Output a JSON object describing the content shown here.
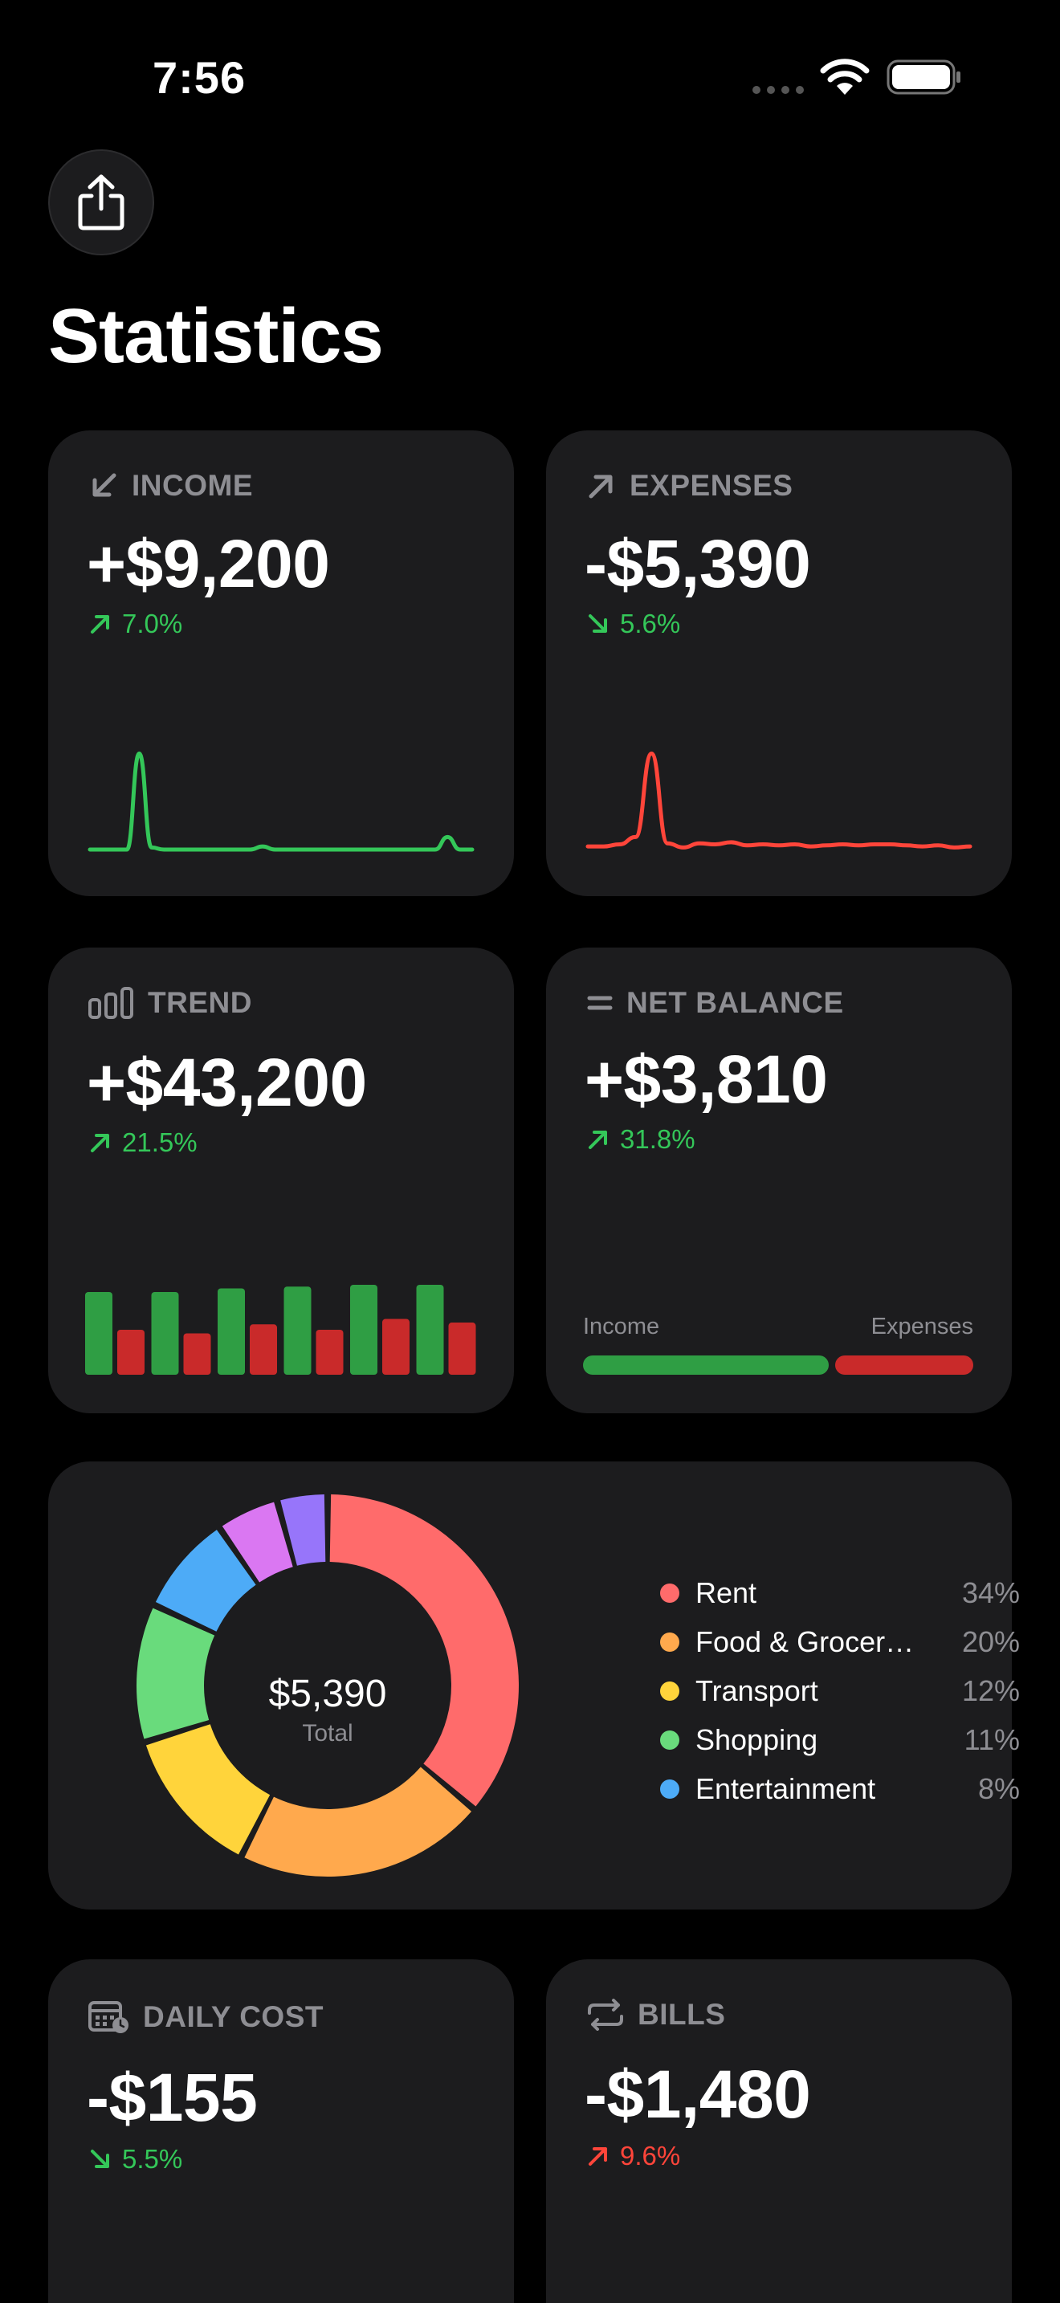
{
  "status_bar": {
    "time": "7:56"
  },
  "page": {
    "title": "Statistics"
  },
  "cards": {
    "income": {
      "label": "INCOME",
      "value": "+$9,200",
      "delta": "7.0%",
      "delta_direction": "up",
      "icon": "arrow-down-left-icon",
      "color": "#34c759"
    },
    "expenses": {
      "label": "EXPENSES",
      "value": "-$5,390",
      "delta": "5.6%",
      "delta_direction": "down",
      "icon": "arrow-up-right-icon",
      "color": "#ff453a"
    },
    "trend": {
      "label": "TREND",
      "value": "+$43,200",
      "delta": "21.5%",
      "delta_direction": "up",
      "icon": "chart-bars-icon"
    },
    "net_balance": {
      "label": "NET BALANCE",
      "value": "+$3,810",
      "delta": "31.8%",
      "delta_direction": "up",
      "icon": "equals-icon",
      "bar_income_label": "Income",
      "bar_expenses_label": "Expenses",
      "income_share": 0.63
    },
    "daily_cost": {
      "label": "DAILY COST",
      "value": "-$155",
      "delta": "5.5%",
      "delta_direction": "down",
      "icon": "calendar-clock-icon"
    },
    "bills": {
      "label": "BILLS",
      "value": "-$1,480",
      "delta": "9.6%",
      "delta_direction": "up",
      "icon": "repeat-icon"
    }
  },
  "breakdown": {
    "total_value": "$5,390",
    "total_label": "Total",
    "legend": [
      {
        "label": "Rent",
        "pct": "34%",
        "color": "#ff6b6b"
      },
      {
        "label": "Food & Grocer…",
        "pct": "20%",
        "color": "#ffa94d"
      },
      {
        "label": "Transport",
        "pct": "12%",
        "color": "#ffd43b"
      },
      {
        "label": "Shopping",
        "pct": "11%",
        "color": "#69db7c"
      },
      {
        "label": "Entertainment",
        "pct": "8%",
        "color": "#4dabf7"
      }
    ]
  },
  "chart_data": [
    {
      "type": "pie",
      "slices": [
        {
          "label": "Rent",
          "value": 34,
          "color": "#ff6b6b"
        },
        {
          "label": "Food & Grocer…",
          "value": 20,
          "color": "#ffa94d"
        },
        {
          "label": "Transport",
          "value": 12,
          "color": "#ffd43b"
        },
        {
          "label": "Shopping",
          "value": 11,
          "color": "#69db7c"
        },
        {
          "label": "Entertainment",
          "value": 8,
          "color": "#4dabf7"
        },
        {
          "label": "",
          "value": 5,
          "color": "#da77f2"
        },
        {
          "label": "",
          "value": 4,
          "color": "#9775fa"
        }
      ]
    },
    {
      "type": "bar",
      "categories": [
        "1",
        "2",
        "3",
        "4",
        "5",
        "6"
      ],
      "series": [
        {
          "name": "Income",
          "values": [
            92,
            92,
            96,
            98,
            100,
            100
          ],
          "color": "#2f9e44"
        },
        {
          "name": "Expenses",
          "values": [
            50,
            46,
            56,
            50,
            62,
            58
          ],
          "color": "#c92a2a"
        }
      ]
    },
    {
      "type": "line",
      "values": [
        0,
        0,
        0,
        0,
        92,
        2,
        0,
        0,
        0,
        0,
        0,
        0,
        0,
        0,
        3,
        0,
        0,
        0,
        0,
        0,
        0,
        0,
        0,
        0,
        0,
        0,
        0,
        0,
        0,
        12,
        0,
        0
      ],
      "color": "#34c759"
    },
    {
      "type": "line",
      "values": [
        3,
        3,
        5,
        12,
        92,
        6,
        2,
        6,
        5,
        7,
        4,
        5,
        4,
        5,
        3,
        4,
        5,
        4,
        5,
        5,
        4,
        3,
        4,
        2,
        3
      ],
      "color": "#ff453a"
    }
  ]
}
